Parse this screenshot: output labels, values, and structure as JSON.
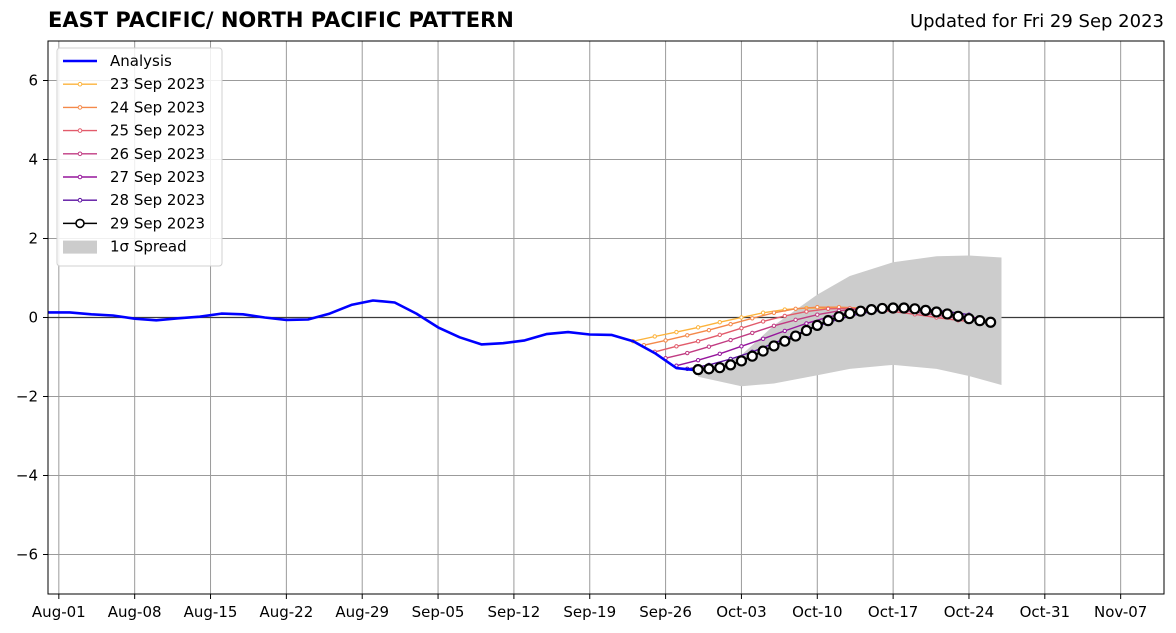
{
  "title": "EAST PACIFIC/ NORTH PACIFIC PATTERN",
  "subtitle": "Updated for Fri 29 Sep 2023",
  "chart_data": {
    "type": "line",
    "title": "EAST PACIFIC/ NORTH PACIFIC PATTERN",
    "subtitle": "Updated for Fri 29 Sep 2023",
    "xlabel": "",
    "ylabel": "",
    "xlim": [
      "2023-07-31",
      "2023-11-11"
    ],
    "ylim": [
      -7,
      7
    ],
    "x_ticks": [
      "Aug-01",
      "Aug-08",
      "Aug-15",
      "Aug-22",
      "Aug-29",
      "Sep-05",
      "Sep-12",
      "Sep-19",
      "Sep-26",
      "Oct-03",
      "Oct-10",
      "Oct-17",
      "Oct-24",
      "Oct-31",
      "Nov-07"
    ],
    "x_tick_dates": [
      "2023-08-01",
      "2023-08-08",
      "2023-08-15",
      "2023-08-22",
      "2023-08-29",
      "2023-09-05",
      "2023-09-12",
      "2023-09-19",
      "2023-09-26",
      "2023-10-03",
      "2023-10-10",
      "2023-10-17",
      "2023-10-24",
      "2023-10-31",
      "2023-11-07"
    ],
    "y_ticks": [
      -6,
      -4,
      -2,
      0,
      2,
      4,
      6
    ],
    "grid": true,
    "legend_position": "top-left",
    "analysis": {
      "name": "Analysis",
      "color": "#0000ff",
      "points": [
        [
          "2023-07-31",
          0.13
        ],
        [
          "2023-08-02",
          0.13
        ],
        [
          "2023-08-04",
          0.08
        ],
        [
          "2023-08-06",
          0.05
        ],
        [
          "2023-08-08",
          -0.03
        ],
        [
          "2023-08-10",
          -0.07
        ],
        [
          "2023-08-12",
          -0.02
        ],
        [
          "2023-08-14",
          0.02
        ],
        [
          "2023-08-16",
          0.1
        ],
        [
          "2023-08-18",
          0.08
        ],
        [
          "2023-08-20",
          0.0
        ],
        [
          "2023-08-22",
          -0.06
        ],
        [
          "2023-08-24",
          -0.05
        ],
        [
          "2023-08-26",
          0.1
        ],
        [
          "2023-08-28",
          0.32
        ],
        [
          "2023-08-30",
          0.43
        ],
        [
          "2023-09-01",
          0.38
        ],
        [
          "2023-09-03",
          0.1
        ],
        [
          "2023-09-05",
          -0.25
        ],
        [
          "2023-09-07",
          -0.5
        ],
        [
          "2023-09-09",
          -0.68
        ],
        [
          "2023-09-11",
          -0.65
        ],
        [
          "2023-09-13",
          -0.58
        ],
        [
          "2023-09-15",
          -0.42
        ],
        [
          "2023-09-17",
          -0.37
        ],
        [
          "2023-09-19",
          -0.43
        ],
        [
          "2023-09-21",
          -0.44
        ],
        [
          "2023-09-23",
          -0.6
        ],
        [
          "2023-09-25",
          -0.9
        ],
        [
          "2023-09-27",
          -1.28
        ],
        [
          "2023-09-29",
          -1.34
        ]
      ]
    },
    "forecasts": [
      {
        "name": "23 Sep 2023",
        "color": "#fcb33c",
        "marker": "small-dot",
        "points": [
          [
            "2023-09-23",
            -0.6
          ],
          [
            "2023-09-25",
            -0.48
          ],
          [
            "2023-09-27",
            -0.37
          ],
          [
            "2023-09-29",
            -0.25
          ],
          [
            "2023-10-01",
            -0.12
          ],
          [
            "2023-10-03",
            0.0
          ],
          [
            "2023-10-05",
            0.12
          ],
          [
            "2023-10-07",
            0.2
          ],
          [
            "2023-10-09",
            0.24
          ],
          [
            "2023-10-11",
            0.24
          ],
          [
            "2023-10-13",
            0.23
          ]
        ]
      },
      {
        "name": "24 Sep 2023",
        "color": "#f4894a",
        "marker": "small-dot",
        "points": [
          [
            "2023-09-24",
            -0.7
          ],
          [
            "2023-09-26",
            -0.58
          ],
          [
            "2023-09-28",
            -0.45
          ],
          [
            "2023-09-30",
            -0.32
          ],
          [
            "2023-10-02",
            -0.17
          ],
          [
            "2023-10-04",
            -0.02
          ],
          [
            "2023-10-06",
            0.12
          ],
          [
            "2023-10-08",
            0.22
          ],
          [
            "2023-10-10",
            0.26
          ],
          [
            "2023-10-12",
            0.26
          ],
          [
            "2023-10-14",
            0.24
          ]
        ]
      },
      {
        "name": "25 Sep 2023",
        "color": "#e25b6b",
        "marker": "small-dot",
        "points": [
          [
            "2023-09-25",
            -0.87
          ],
          [
            "2023-09-27",
            -0.73
          ],
          [
            "2023-09-29",
            -0.6
          ],
          [
            "2023-10-01",
            -0.44
          ],
          [
            "2023-10-03",
            -0.27
          ],
          [
            "2023-10-05",
            -0.1
          ],
          [
            "2023-10-07",
            0.04
          ],
          [
            "2023-10-09",
            0.15
          ],
          [
            "2023-10-11",
            0.22
          ],
          [
            "2023-10-13",
            0.23
          ],
          [
            "2023-10-15",
            0.2
          ],
          [
            "2023-10-17",
            0.15
          ],
          [
            "2023-10-19",
            0.08
          ],
          [
            "2023-10-21",
            0.0
          ],
          [
            "2023-10-23",
            -0.07
          ],
          [
            "2023-10-24",
            -0.1
          ]
        ]
      },
      {
        "name": "26 Sep 2023",
        "color": "#c13b82",
        "marker": "small-dot",
        "points": [
          [
            "2023-09-26",
            -1.03
          ],
          [
            "2023-09-28",
            -0.9
          ],
          [
            "2023-09-30",
            -0.74
          ],
          [
            "2023-10-02",
            -0.57
          ],
          [
            "2023-10-04",
            -0.39
          ],
          [
            "2023-10-06",
            -0.21
          ],
          [
            "2023-10-08",
            -0.06
          ],
          [
            "2023-10-10",
            0.07
          ],
          [
            "2023-10-12",
            0.17
          ],
          [
            "2023-10-14",
            0.22
          ],
          [
            "2023-10-16",
            0.22
          ],
          [
            "2023-10-18",
            0.18
          ],
          [
            "2023-10-20",
            0.1
          ],
          [
            "2023-10-22",
            0.02
          ],
          [
            "2023-10-24",
            -0.05
          ]
        ]
      },
      {
        "name": "27 Sep 2023",
        "color": "#96169c",
        "marker": "small-dot",
        "points": [
          [
            "2023-09-27",
            -1.22
          ],
          [
            "2023-09-29",
            -1.08
          ],
          [
            "2023-10-01",
            -0.92
          ],
          [
            "2023-10-03",
            -0.73
          ],
          [
            "2023-10-05",
            -0.54
          ],
          [
            "2023-10-07",
            -0.34
          ],
          [
            "2023-10-09",
            -0.15
          ],
          [
            "2023-10-11",
            0.01
          ],
          [
            "2023-10-13",
            0.13
          ],
          [
            "2023-10-15",
            0.2
          ],
          [
            "2023-10-17",
            0.22
          ],
          [
            "2023-10-19",
            0.19
          ],
          [
            "2023-10-21",
            0.13
          ],
          [
            "2023-10-23",
            0.05
          ],
          [
            "2023-10-25",
            -0.02
          ]
        ]
      },
      {
        "name": "28 Sep 2023",
        "color": "#5a0fa0",
        "marker": "small-dot",
        "points": [
          [
            "2023-09-28",
            -1.3
          ],
          [
            "2023-09-30",
            -1.2
          ],
          [
            "2023-10-02",
            -1.05
          ],
          [
            "2023-10-04",
            -0.87
          ],
          [
            "2023-10-06",
            -0.65
          ],
          [
            "2023-10-08",
            -0.43
          ],
          [
            "2023-10-10",
            -0.22
          ],
          [
            "2023-10-12",
            -0.04
          ],
          [
            "2023-10-14",
            0.1
          ],
          [
            "2023-10-16",
            0.19
          ],
          [
            "2023-10-18",
            0.23
          ],
          [
            "2023-10-20",
            0.21
          ],
          [
            "2023-10-22",
            0.15
          ],
          [
            "2023-10-24",
            0.07
          ]
        ]
      },
      {
        "name": "29 Sep 2023",
        "color": "#000000",
        "marker": "open-circle",
        "points": [
          [
            "2023-09-29",
            -1.32
          ],
          [
            "2023-09-30",
            -1.3
          ],
          [
            "2023-10-01",
            -1.27
          ],
          [
            "2023-10-02",
            -1.2
          ],
          [
            "2023-10-03",
            -1.1
          ],
          [
            "2023-10-04",
            -0.98
          ],
          [
            "2023-10-05",
            -0.85
          ],
          [
            "2023-10-06",
            -0.72
          ],
          [
            "2023-10-07",
            -0.6
          ],
          [
            "2023-10-08",
            -0.47
          ],
          [
            "2023-10-09",
            -0.33
          ],
          [
            "2023-10-10",
            -0.2
          ],
          [
            "2023-10-11",
            -0.08
          ],
          [
            "2023-10-12",
            0.02
          ],
          [
            "2023-10-13",
            0.1
          ],
          [
            "2023-10-14",
            0.16
          ],
          [
            "2023-10-15",
            0.2
          ],
          [
            "2023-10-16",
            0.23
          ],
          [
            "2023-10-17",
            0.24
          ],
          [
            "2023-10-18",
            0.24
          ],
          [
            "2023-10-19",
            0.22
          ],
          [
            "2023-10-20",
            0.18
          ],
          [
            "2023-10-21",
            0.14
          ],
          [
            "2023-10-22",
            0.09
          ],
          [
            "2023-10-23",
            0.03
          ],
          [
            "2023-10-24",
            -0.03
          ],
          [
            "2023-10-25",
            -0.08
          ],
          [
            "2023-10-26",
            -0.12
          ]
        ]
      }
    ],
    "spread": {
      "name": "1σ Spread",
      "color": "#cccccc",
      "upper": [
        [
          "2023-09-29",
          -1.45
        ],
        [
          "2023-10-03",
          -0.95
        ],
        [
          "2023-10-06",
          -0.2
        ],
        [
          "2023-10-10",
          0.58
        ],
        [
          "2023-10-13",
          1.05
        ],
        [
          "2023-10-17",
          1.4
        ],
        [
          "2023-10-21",
          1.55
        ],
        [
          "2023-10-24",
          1.57
        ],
        [
          "2023-10-27",
          1.52
        ]
      ],
      "lower": [
        [
          "2023-09-29",
          -1.5
        ],
        [
          "2023-10-03",
          -1.74
        ],
        [
          "2023-10-06",
          -1.67
        ],
        [
          "2023-10-10",
          -1.46
        ],
        [
          "2023-10-13",
          -1.3
        ],
        [
          "2023-10-17",
          -1.2
        ],
        [
          "2023-10-21",
          -1.3
        ],
        [
          "2023-10-24",
          -1.48
        ],
        [
          "2023-10-27",
          -1.71
        ]
      ]
    }
  }
}
